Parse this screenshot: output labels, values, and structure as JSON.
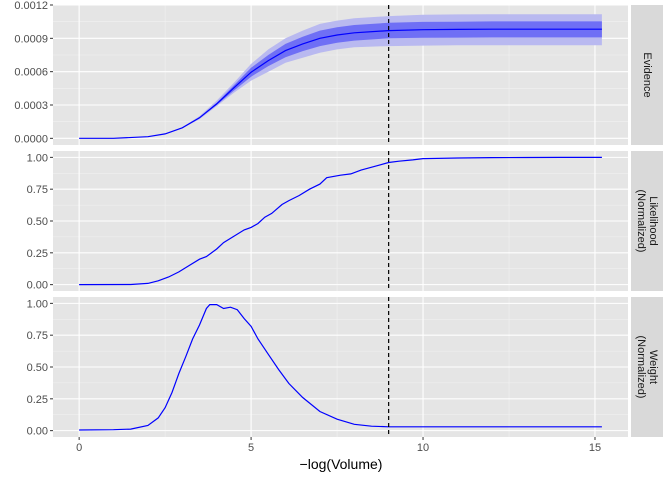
{
  "chart_data": {
    "type": "line",
    "xlabel": "−log(Volume)",
    "xlim": [
      -0.76,
      15.96
    ],
    "x_ticks": [
      0,
      5,
      10,
      15
    ],
    "x_ticks_labels": [
      "0",
      "5",
      "10",
      "15"
    ],
    "vline": {
      "x": 9.0,
      "style": "dashed",
      "color": "#000000"
    },
    "grid": true,
    "panel_background": "#e5e5e5",
    "strip_background": "#d9d9d9",
    "line_color": "#0000ff",
    "band_inner_color": "#6f6ff5",
    "band_outer_color": "#b9b9f0",
    "panels": [
      {
        "strip": [
          "Evidence"
        ],
        "ylim": [
          -6e-05,
          0.0012
        ],
        "y_ticks": [
          0,
          0.0003,
          0.0006,
          0.0009,
          0.0012
        ],
        "y_ticks_labels": [
          "0.0000",
          "0.0003",
          "0.0006",
          "0.0009",
          "0.0012"
        ],
        "x": [
          0,
          1,
          2,
          2.5,
          3,
          3.5,
          4,
          4.5,
          5,
          5.5,
          6,
          6.5,
          7,
          7.5,
          8,
          9,
          10,
          11,
          12,
          13,
          14,
          15.2
        ],
        "y": [
          0,
          5e-07,
          1.5e-05,
          4e-05,
          9.5e-05,
          0.000185,
          0.00031,
          0.000455,
          0.000595,
          0.0007,
          0.00079,
          0.00085,
          0.0009,
          0.00093,
          0.00095,
          0.00097,
          0.000978,
          0.00098,
          0.000982,
          0.000982,
          0.000982,
          0.000982
        ],
        "band_inner": {
          "lower": [
            0,
            5e-07,
            1.5e-05,
            4e-05,
            9.3e-05,
            0.00018,
            0.0003,
            0.00043,
            0.000555,
            0.00065,
            0.00073,
            0.000785,
            0.00083,
            0.00086,
            0.00088,
            0.0009,
            0.000905,
            0.000907,
            0.000908,
            0.000908,
            0.000908,
            0.000908
          ],
          "upper": [
            0,
            5e-07,
            1.5e-05,
            4e-05,
            9.7e-05,
            0.000192,
            0.00032,
            0.000478,
            0.000635,
            0.00075,
            0.00085,
            0.000915,
            0.00097,
            0.001,
            0.00102,
            0.00104,
            0.001048,
            0.00105,
            0.001052,
            0.001052,
            0.001052,
            0.001052
          ]
        },
        "band_outer": {
          "lower": [
            0,
            5e-07,
            1.5e-05,
            4e-05,
            9e-05,
            0.000172,
            0.00029,
            0.00041,
            0.00052,
            0.0006,
            0.00068,
            0.000725,
            0.00077,
            0.0008,
            0.00082,
            0.00083,
            0.000835,
            0.000837,
            0.000838,
            0.000838,
            0.000838,
            0.000838
          ],
          "upper": [
            0,
            5e-07,
            1.5e-05,
            4e-05,
            0.0001,
            0.0002,
            0.00034,
            0.0005,
            0.00067,
            0.0008,
            0.0009,
            0.00097,
            0.00103,
            0.00106,
            0.00108,
            0.0011,
            0.001112,
            0.001115,
            0.001116,
            0.001116,
            0.001116,
            0.001116
          ]
        }
      },
      {
        "strip": [
          "Likelihood",
          "(Normalized)"
        ],
        "ylim": [
          -0.05,
          1.05
        ],
        "y_ticks": [
          0,
          0.25,
          0.5,
          0.75,
          1
        ],
        "y_ticks_labels": [
          "0.00",
          "0.25",
          "0.50",
          "0.75",
          "1.00"
        ],
        "x": [
          0,
          1.5,
          2,
          2.3,
          2.6,
          2.9,
          3.2,
          3.5,
          3.7,
          4,
          4.2,
          4.5,
          4.8,
          5,
          5.2,
          5.4,
          5.6,
          5.9,
          6.1,
          6.4,
          6.7,
          7,
          7.2,
          7.6,
          7.9,
          8.2,
          8.6,
          9,
          9.3,
          9.7,
          10,
          11,
          12,
          13,
          14,
          15.2
        ],
        "y": [
          0,
          0.001,
          0.01,
          0.03,
          0.06,
          0.1,
          0.15,
          0.2,
          0.22,
          0.28,
          0.33,
          0.38,
          0.43,
          0.45,
          0.48,
          0.53,
          0.56,
          0.63,
          0.66,
          0.7,
          0.75,
          0.79,
          0.84,
          0.86,
          0.87,
          0.9,
          0.93,
          0.96,
          0.97,
          0.98,
          0.99,
          0.995,
          0.998,
          0.999,
          1.0,
          1.0
        ]
      },
      {
        "strip": [
          "Weight",
          "(Normalized)"
        ],
        "ylim": [
          -0.05,
          1.05
        ],
        "y_ticks": [
          0,
          0.25,
          0.5,
          0.75,
          1
        ],
        "y_ticks_labels": [
          "0.00",
          "0.25",
          "0.50",
          "0.75",
          "1.00"
        ],
        "x": [
          0,
          1,
          1.5,
          2,
          2.3,
          2.5,
          2.7,
          2.9,
          3.1,
          3.3,
          3.5,
          3.7,
          3.8,
          4,
          4.2,
          4.4,
          4.6,
          4.8,
          5,
          5.2,
          5.5,
          5.8,
          6.1,
          6.5,
          7,
          7.5,
          8,
          8.5,
          9,
          9.5,
          10,
          11,
          12,
          13,
          14,
          15.2
        ],
        "y": [
          0.005,
          0.007,
          0.012,
          0.04,
          0.1,
          0.18,
          0.3,
          0.45,
          0.58,
          0.72,
          0.83,
          0.96,
          0.99,
          0.99,
          0.96,
          0.97,
          0.95,
          0.88,
          0.82,
          0.72,
          0.6,
          0.48,
          0.37,
          0.26,
          0.15,
          0.09,
          0.05,
          0.035,
          0.03,
          0.03,
          0.03,
          0.03,
          0.03,
          0.03,
          0.03,
          0.03
        ]
      }
    ]
  }
}
